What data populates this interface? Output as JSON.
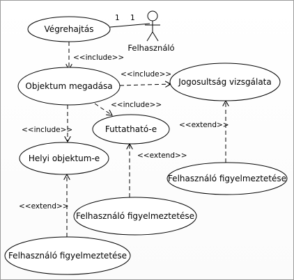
{
  "actor": {
    "name": "Felhasználó",
    "multiplicity_usecase_end": "1",
    "multiplicity_actor_end": "1"
  },
  "use_cases": {
    "vegrehajtas": "Végrehajtás",
    "objektum_megadasa": "Objektum megadása",
    "jogosultsag_vizsgalata": "Jogosultság vizsgálata",
    "futtathato": "Futtatható-e",
    "helyi_objektum": "Helyi objektum-e",
    "figyelmeztetes_right": "Felhasználó figyelmeztetése",
    "figyelmeztetes_middle": "Felhasználó figyelmeztetése",
    "figyelmeztetes_bottom": "Felhasználó figyelmeztetése"
  },
  "relations": {
    "include_1": "<<include>>",
    "include_2": "<<include>>",
    "include_3": "<<include>>",
    "include_4": "<<include>>",
    "extend_1": "<<extend>>",
    "extend_2": "<<extend>>",
    "extend_3": "<<extend>>"
  },
  "colors": {
    "stroke": "#000000",
    "fill": "#ffffff"
  }
}
